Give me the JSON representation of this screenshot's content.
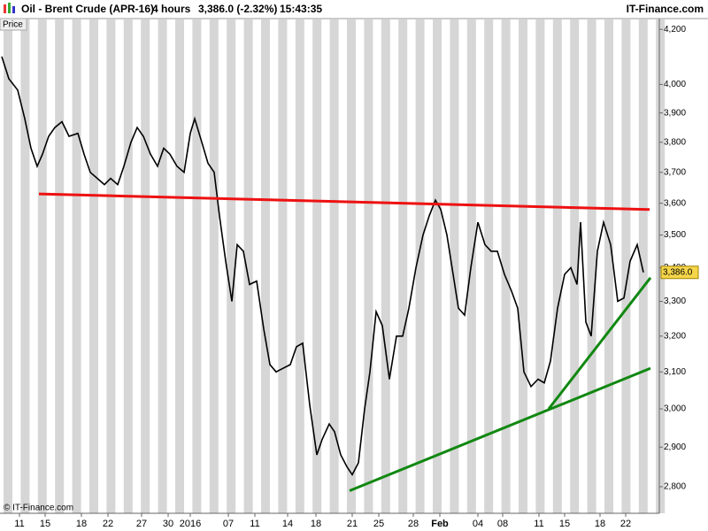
{
  "chart_data": {
    "type": "line",
    "title": "Oil - Brent Crude (APR-16)",
    "interval": "4 hours",
    "change": "3,386.0 (-2.32%)",
    "time": "15:43:35",
    "brand": "IT-Finance.com",
    "panel_label": "Price",
    "copyright": "© IT-Finance.com",
    "log_scale": true,
    "xlim": [
      0,
      149
    ],
    "ylim": [
      2778,
      4237
    ],
    "yticks": [
      {
        "value": 2800,
        "label": "2,800"
      },
      {
        "value": 2900,
        "label": "2,900"
      },
      {
        "value": 3000,
        "label": "3,000"
      },
      {
        "value": 3100,
        "label": "3,100"
      },
      {
        "value": 3200,
        "label": "3,200"
      },
      {
        "value": 3300,
        "label": "3,300"
      },
      {
        "value": 3400,
        "label": "3,400"
      },
      {
        "value": 3500,
        "label": "3,500"
      },
      {
        "value": 3600,
        "label": "3,600"
      },
      {
        "value": 3700,
        "label": "3,700"
      },
      {
        "value": 3800,
        "label": "3,800"
      },
      {
        "value": 3900,
        "label": "3,900"
      },
      {
        "value": 4000,
        "label": "4,000"
      },
      {
        "value": 4200,
        "label": "4,200"
      }
    ],
    "xticks": [
      {
        "value": 4.4,
        "label": "11"
      },
      {
        "value": 10.2,
        "label": "15"
      },
      {
        "value": 18.4,
        "label": "18"
      },
      {
        "value": 24.4,
        "label": "22"
      },
      {
        "value": 32,
        "label": "27"
      },
      {
        "value": 38,
        "label": "30"
      },
      {
        "value": 43,
        "label": "2016"
      },
      {
        "value": 51.6,
        "label": "07"
      },
      {
        "value": 57.6,
        "label": "11"
      },
      {
        "value": 65,
        "label": "14"
      },
      {
        "value": 71.4,
        "label": "18"
      },
      {
        "value": 79.6,
        "label": "21"
      },
      {
        "value": 85.6,
        "label": "25"
      },
      {
        "value": 93.4,
        "label": "28"
      },
      {
        "value": 99.4,
        "label": "Feb"
      },
      {
        "value": 108,
        "label": "04"
      },
      {
        "value": 113.6,
        "label": "08"
      },
      {
        "value": 121.8,
        "label": "11"
      },
      {
        "value": 127.6,
        "label": "15"
      },
      {
        "value": 135.6,
        "label": "18"
      },
      {
        "value": 141.4,
        "label": "22"
      }
    ],
    "series": [
      {
        "name": "Price",
        "color": "#000000",
        "x": [
          0.4,
          2,
          4,
          5.6,
          7,
          8.4,
          9.6,
          11,
          12.4,
          14,
          15.6,
          17.6,
          19,
          20.4,
          22,
          23.6,
          25,
          26.6,
          28,
          29.6,
          31,
          32.4,
          34,
          35.6,
          37,
          38.4,
          40,
          41.6,
          43,
          44,
          45.6,
          47,
          48.4,
          49.6,
          51,
          52.4,
          53.6,
          55,
          56.4,
          58,
          59.6,
          61,
          62.4,
          64,
          65.6,
          67,
          68.4,
          70,
          71.6,
          72.8,
          74.4,
          75.6,
          77,
          78.4,
          79.6,
          81,
          82.4,
          83.6,
          85,
          86.4,
          88,
          89.6,
          91,
          92.4,
          94,
          95.6,
          97,
          98.4,
          99.6,
          101,
          102.4,
          103.6,
          105,
          106.4,
          108,
          109.6,
          111,
          112.4,
          114,
          115.6,
          117,
          118.4,
          120,
          121.6,
          123,
          124.4,
          126,
          127.6,
          129,
          130.4,
          131.2,
          132.4,
          133.6,
          135,
          136.4,
          138,
          139.6,
          141,
          142.4,
          144,
          145.4
        ],
        "values": [
          4100,
          4020,
          3980,
          3880,
          3780,
          3720,
          3760,
          3820,
          3850,
          3870,
          3820,
          3830,
          3760,
          3700,
          3680,
          3660,
          3680,
          3660,
          3720,
          3800,
          3850,
          3820,
          3760,
          3720,
          3780,
          3760,
          3720,
          3700,
          3830,
          3880,
          3800,
          3730,
          3700,
          3560,
          3420,
          3300,
          3470,
          3450,
          3350,
          3360,
          3220,
          3120,
          3100,
          3110,
          3120,
          3170,
          3180,
          3010,
          2880,
          2920,
          2960,
          2940,
          2880,
          2850,
          2830,
          2860,
          3000,
          3100,
          3270,
          3230,
          3080,
          3200,
          3200,
          3280,
          3400,
          3500,
          3560,
          3610,
          3580,
          3500,
          3380,
          3280,
          3260,
          3400,
          3540,
          3470,
          3450,
          3450,
          3380,
          3330,
          3280,
          3100,
          3060,
          3080,
          3070,
          3130,
          3280,
          3380,
          3400,
          3350,
          3540,
          3240,
          3200,
          3450,
          3540,
          3470,
          3300,
          3310,
          3420,
          3470,
          3386
        ]
      }
    ],
    "last_price": {
      "value": 3386,
      "label": "3,386.0"
    },
    "trendlines": [
      {
        "color": "#ee1111",
        "x": [
          8.8,
          146.8
        ],
        "y": [
          3630,
          3580
        ]
      },
      {
        "color": "#118811",
        "x": [
          79,
          147
        ],
        "y": [
          2790,
          3110
        ]
      },
      {
        "color": "#118811",
        "x": [
          124,
          147
        ],
        "y": [
          3000,
          3370
        ]
      }
    ]
  }
}
